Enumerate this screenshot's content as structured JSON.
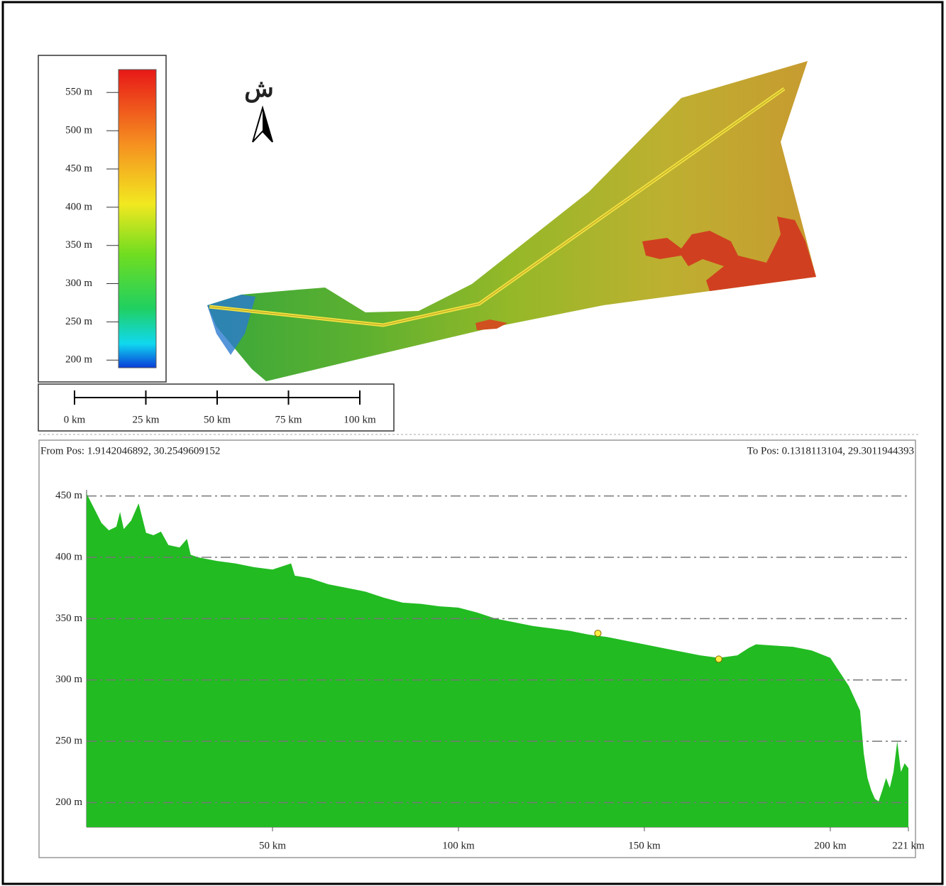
{
  "legend": {
    "range": [
      190,
      580
    ],
    "ticks": [
      {
        "value": 550,
        "label": "550 m"
      },
      {
        "value": 500,
        "label": "500 m"
      },
      {
        "value": 450,
        "label": "450 m"
      },
      {
        "value": 400,
        "label": "400 m"
      },
      {
        "value": 350,
        "label": "350 m"
      },
      {
        "value": 300,
        "label": "300 m"
      },
      {
        "value": 250,
        "label": "250 m"
      },
      {
        "value": 200,
        "label": "200 m"
      }
    ]
  },
  "north_label": "ش",
  "scale_bar": {
    "ticks": [
      {
        "value": 0,
        "label": "0 km"
      },
      {
        "value": 25,
        "label": "25 km"
      },
      {
        "value": 50,
        "label": "50 km"
      },
      {
        "value": 75,
        "label": "75 km"
      },
      {
        "value": 100,
        "label": "100 km"
      }
    ]
  },
  "chart_data": {
    "type": "area",
    "from_label": "From Pos: 1.9142046892, 30.2549609152",
    "to_label": "To Pos: 0.1318113104, 29.3011944393",
    "color": "#22bb22",
    "x": [
      0,
      2,
      4,
      6,
      8,
      9,
      10,
      12,
      14,
      16,
      18,
      20,
      22,
      25,
      27,
      28,
      30,
      35,
      40,
      45,
      50,
      55,
      56,
      60,
      65,
      70,
      75,
      80,
      85,
      90,
      95,
      100,
      105,
      110,
      115,
      120,
      125,
      130,
      135,
      140,
      145,
      150,
      155,
      160,
      165,
      170,
      175,
      178,
      180,
      185,
      190,
      195,
      200,
      205,
      208,
      209,
      210,
      211,
      212,
      213,
      214,
      215,
      216,
      217,
      218,
      219,
      220,
      221
    ],
    "values": [
      452,
      440,
      428,
      422,
      425,
      437,
      423,
      430,
      444,
      420,
      418,
      421,
      410,
      408,
      415,
      402,
      400,
      397,
      395,
      392,
      390,
      395,
      385,
      383,
      378,
      375,
      372,
      367,
      363,
      362,
      360,
      359,
      355,
      350,
      347,
      344,
      342,
      340,
      337,
      335,
      332,
      329,
      326,
      323,
      320,
      318,
      320,
      326,
      329,
      328,
      327,
      324,
      318,
      295,
      275,
      240,
      220,
      210,
      203,
      201,
      210,
      220,
      212,
      225,
      250,
      225,
      232,
      228
    ],
    "markers": {
      "color": "#ffee44",
      "x": [
        137.5,
        170
      ],
      "values": [
        338,
        317
      ]
    },
    "xlim": [
      0,
      221
    ],
    "ylim": [
      180,
      455
    ],
    "xticks": [
      {
        "value": 50,
        "label": "50 km"
      },
      {
        "value": 100,
        "label": "100 km"
      },
      {
        "value": 150,
        "label": "150 km"
      },
      {
        "value": 200,
        "label": "200 km"
      },
      {
        "value": 221,
        "label": "221 km"
      }
    ],
    "yticks": [
      {
        "value": 450,
        "label": "450 m"
      },
      {
        "value": 400,
        "label": "400 m"
      },
      {
        "value": 350,
        "label": "350 m"
      },
      {
        "value": 300,
        "label": "300 m"
      },
      {
        "value": 250,
        "label": "250 m"
      },
      {
        "value": 200,
        "label": "200 m"
      }
    ],
    "grid": true
  }
}
